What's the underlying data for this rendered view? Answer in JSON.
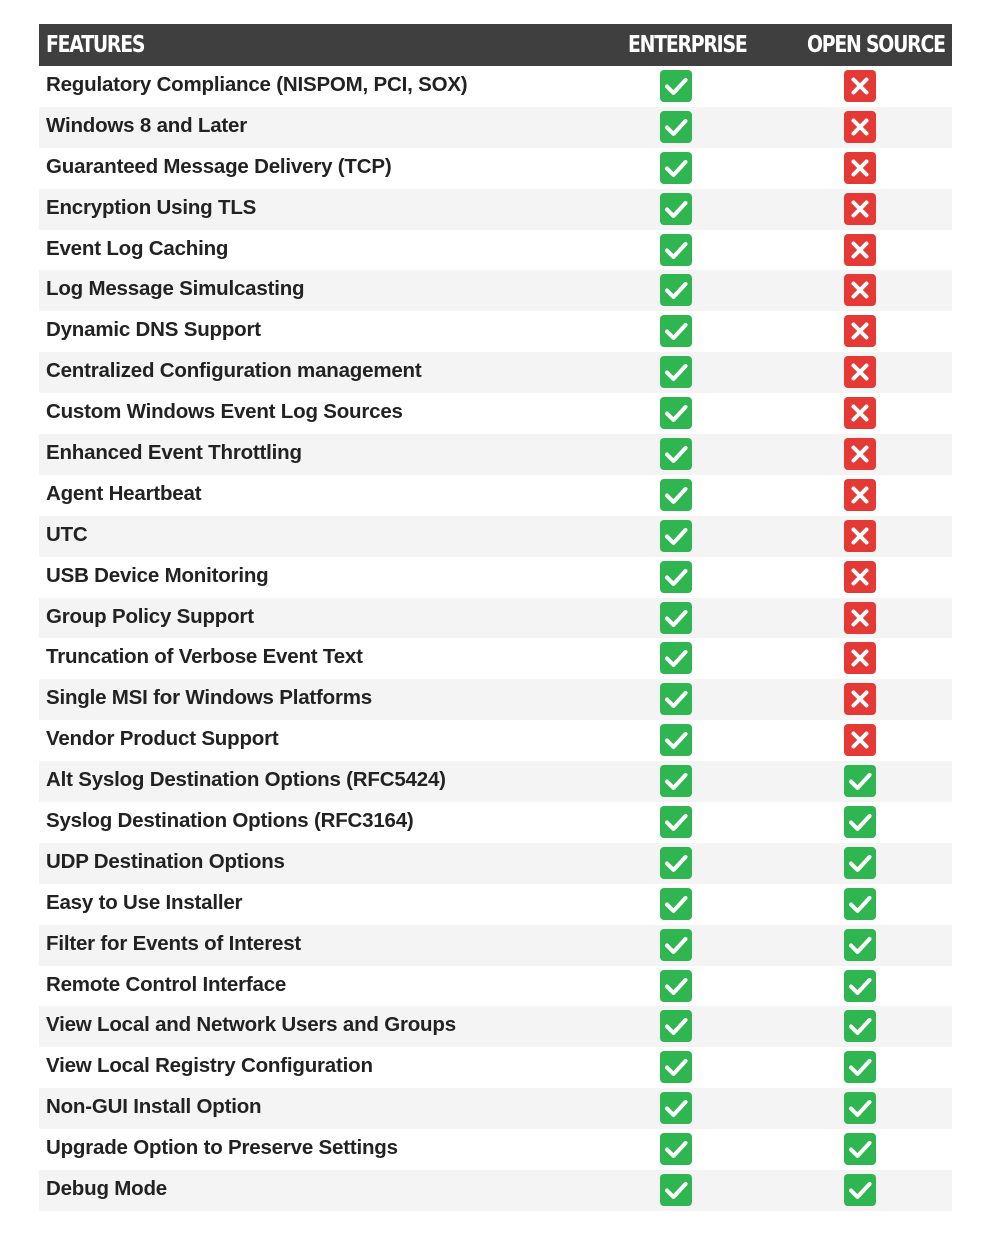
{
  "header": {
    "features": "FEATURES",
    "enterprise": "ENTERPRISE",
    "open_source": "OPEN SOURCE"
  },
  "colors": {
    "header_bg": "#3f3f3f",
    "check_green": "#2fb650",
    "cross_red": "#e53935",
    "row_alt": "#f4f4f4"
  },
  "icons": {
    "yes": "checkmark-icon",
    "no": "cross-icon"
  },
  "rows": [
    {
      "feature": "Regulatory Compliance (NISPOM, PCI, SOX)",
      "enterprise": true,
      "open_source": false
    },
    {
      "feature": "Windows 8 and Later",
      "enterprise": true,
      "open_source": false
    },
    {
      "feature": "Guaranteed Message Delivery (TCP)",
      "enterprise": true,
      "open_source": false
    },
    {
      "feature": "Encryption Using TLS",
      "enterprise": true,
      "open_source": false
    },
    {
      "feature": "Event Log Caching",
      "enterprise": true,
      "open_source": false
    },
    {
      "feature": "Log Message Simulcasting",
      "enterprise": true,
      "open_source": false
    },
    {
      "feature": "Dynamic DNS Support",
      "enterprise": true,
      "open_source": false
    },
    {
      "feature": "Centralized Configuration management",
      "enterprise": true,
      "open_source": false
    },
    {
      "feature": "Custom Windows Event Log Sources",
      "enterprise": true,
      "open_source": false
    },
    {
      "feature": "Enhanced Event Throttling",
      "enterprise": true,
      "open_source": false
    },
    {
      "feature": "Agent Heartbeat",
      "enterprise": true,
      "open_source": false
    },
    {
      "feature": "UTC",
      "enterprise": true,
      "open_source": false
    },
    {
      "feature": "USB Device Monitoring",
      "enterprise": true,
      "open_source": false
    },
    {
      "feature": "Group Policy Support",
      "enterprise": true,
      "open_source": false
    },
    {
      "feature": "Truncation of Verbose Event Text",
      "enterprise": true,
      "open_source": false
    },
    {
      "feature": "Single MSI for Windows Platforms",
      "enterprise": true,
      "open_source": false
    },
    {
      "feature": "Vendor Product Support",
      "enterprise": true,
      "open_source": false
    },
    {
      "feature": "Alt Syslog Destination Options (RFC5424)",
      "enterprise": true,
      "open_source": true
    },
    {
      "feature": "Syslog Destination Options (RFC3164)",
      "enterprise": true,
      "open_source": true
    },
    {
      "feature": "UDP Destination Options",
      "enterprise": true,
      "open_source": true
    },
    {
      "feature": "Easy to Use Installer",
      "enterprise": true,
      "open_source": true
    },
    {
      "feature": "Filter for Events of Interest",
      "enterprise": true,
      "open_source": true
    },
    {
      "feature": "Remote Control Interface",
      "enterprise": true,
      "open_source": true
    },
    {
      "feature": "View Local and Network Users and Groups",
      "enterprise": true,
      "open_source": true
    },
    {
      "feature": "View Local Registry Configuration",
      "enterprise": true,
      "open_source": true
    },
    {
      "feature": "Non-GUI Install Option",
      "enterprise": true,
      "open_source": true
    },
    {
      "feature": "Upgrade Option to Preserve Settings",
      "enterprise": true,
      "open_source": true
    },
    {
      "feature": "Debug Mode",
      "enterprise": true,
      "open_source": true
    }
  ]
}
